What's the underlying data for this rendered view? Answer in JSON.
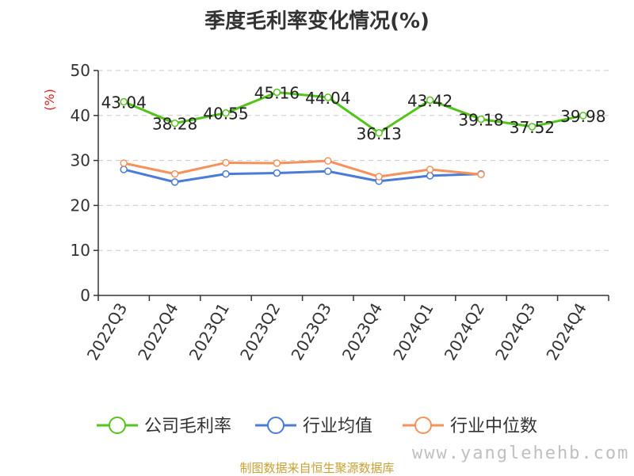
{
  "chart_data": {
    "type": "line",
    "title": "季度毛利率变化情况(%)",
    "ylabel": "(%)",
    "xlabel": "",
    "ylim": [
      0,
      50
    ],
    "yticks": [
      0,
      10,
      20,
      30,
      40,
      50
    ],
    "grid": true,
    "legend": "bottom",
    "categories": [
      "2022Q3",
      "2022Q4",
      "2023Q1",
      "2023Q2",
      "2023Q3",
      "2023Q4",
      "2024Q1",
      "2024Q2",
      "2024Q3",
      "2024Q4"
    ],
    "series": [
      {
        "name": "公司毛利率",
        "color": "#52c41a",
        "values": [
          43.04,
          38.28,
          40.55,
          45.16,
          44.04,
          36.13,
          43.42,
          39.18,
          37.52,
          39.98
        ],
        "labels": [
          "43.04",
          "38.28",
          "40.55",
          "45.16",
          "44.04",
          "36.13",
          "43.42",
          "39.18",
          "37.52",
          "39.98"
        ]
      },
      {
        "name": "行业均值",
        "color": "#4a7bd8",
        "values": [
          28.0,
          25.2,
          27.0,
          27.2,
          27.6,
          25.4,
          26.6,
          27.0,
          null,
          null
        ]
      },
      {
        "name": "行业中位数",
        "color": "#f5925a",
        "values": [
          29.4,
          27.0,
          29.5,
          29.4,
          29.9,
          26.4,
          28.0,
          26.9,
          null,
          null
        ]
      }
    ]
  },
  "source_note": "制图数据来自恒生聚源数据库",
  "watermark": "www.yanglehehb.com"
}
